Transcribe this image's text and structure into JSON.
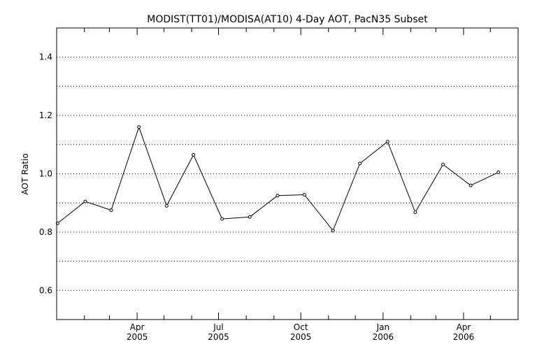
{
  "chart_data": {
    "type": "line",
    "title": "MODIST(TT01)/MODISA(AT10) 4-Day AOT, PacN35 Subset",
    "ylabel": "AOT Ratio",
    "xlabel": "",
    "ylim": [
      0.5,
      1.5
    ],
    "xlim": [
      "2005-01-01",
      "2006-06-01"
    ],
    "yticks": [
      0.6,
      0.8,
      1.0,
      1.2,
      1.4
    ],
    "ytick_labels": [
      "0.6",
      "0.8",
      "1.0",
      "1.2",
      "1.4"
    ],
    "y_gridlines": [
      0.6,
      0.7,
      0.8,
      0.9,
      1.0,
      1.1,
      1.2,
      1.3,
      1.4
    ],
    "grid": true,
    "x_minor_ticks": [
      "2005-02-01",
      "2005-03-01",
      "2005-05-01",
      "2005-06-01",
      "2005-08-01",
      "2005-09-01",
      "2005-11-01",
      "2005-12-01",
      "2006-02-01",
      "2006-03-01",
      "2006-05-01"
    ],
    "xticks": [
      {
        "date": "2005-04-01",
        "month": "Apr",
        "year": "2005"
      },
      {
        "date": "2005-07-01",
        "month": "Jul",
        "year": "2005"
      },
      {
        "date": "2005-10-01",
        "month": "Oct",
        "year": "2005"
      },
      {
        "date": "2006-01-01",
        "month": "Jan",
        "year": "2006"
      },
      {
        "date": "2006-04-01",
        "month": "Apr",
        "year": "2006"
      }
    ],
    "x": [
      "2005-01-02",
      "2005-02-02",
      "2005-03-03",
      "2005-04-03",
      "2005-05-04",
      "2005-06-03",
      "2005-07-05",
      "2005-08-05",
      "2005-09-05",
      "2005-10-05",
      "2005-11-06",
      "2005-12-06",
      "2006-01-06",
      "2006-02-06",
      "2006-03-09",
      "2006-04-09",
      "2006-05-10"
    ],
    "series": [
      {
        "values": [
          0.83,
          0.905,
          0.875,
          1.16,
          0.89,
          1.065,
          0.845,
          0.852,
          0.925,
          0.928,
          0.805,
          1.035,
          1.11,
          0.868,
          1.032,
          0.96,
          1.005
        ]
      }
    ]
  }
}
